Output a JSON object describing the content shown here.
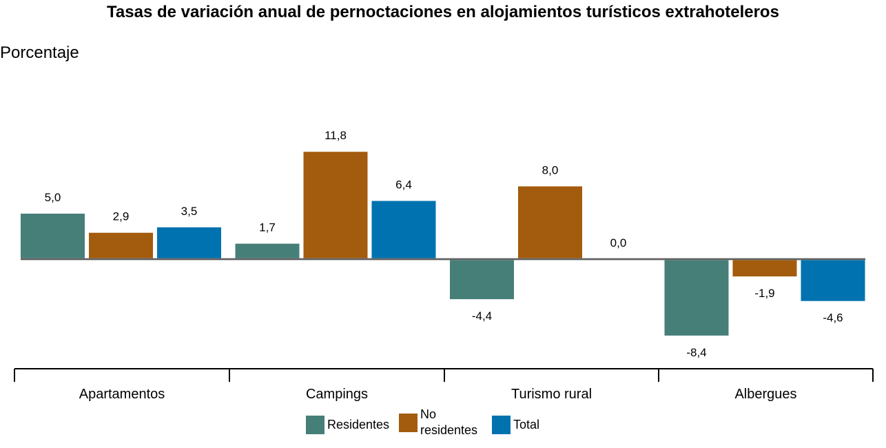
{
  "chart_data": {
    "type": "bar",
    "title": "Tasas de variación anual de pernoctaciones en alojamientos turísticos extrahoteleros",
    "ylabel": "Porcentaje",
    "categories": [
      "Apartamentos",
      "Campings",
      "Turismo rural",
      "Albergues"
    ],
    "series": [
      {
        "name": "Residentes",
        "color": "#467f78",
        "values": [
          5.0,
          1.7,
          -4.4,
          -8.4
        ],
        "labels": [
          "5,0",
          "1,7",
          "-4,4",
          "-8,4"
        ]
      },
      {
        "name": "No residentes",
        "color": "#a35b0d",
        "values": [
          2.9,
          11.8,
          8.0,
          -1.9
        ],
        "labels": [
          "2,9",
          "11,8",
          "8,0",
          "-1,9"
        ]
      },
      {
        "name": "Total",
        "color": "#0072b0",
        "values": [
          3.5,
          6.4,
          0.0,
          -4.6
        ],
        "labels": [
          "3,5",
          "6,4",
          "0,0",
          "-4,6"
        ]
      }
    ],
    "ylim": [
      -12,
      15
    ],
    "grid": false,
    "legend_position": "bottom"
  }
}
